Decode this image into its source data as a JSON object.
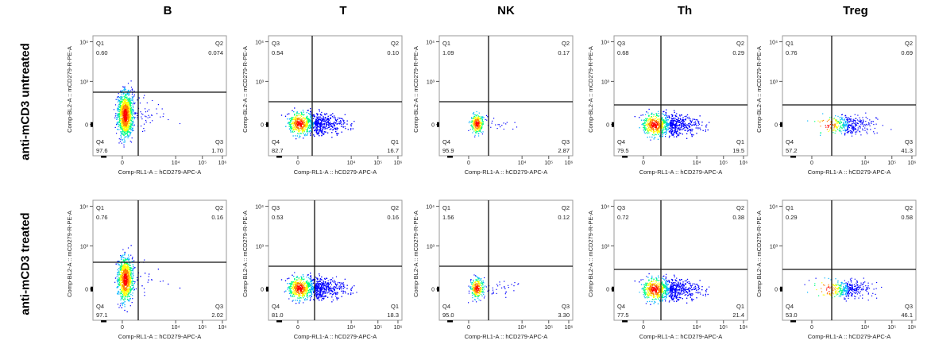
{
  "columns": [
    "B",
    "T",
    "NK",
    "Th",
    "Treg"
  ],
  "rows": [
    "anti-mCD3 untreated",
    "anti-mCD3 treated"
  ],
  "chart_data": {
    "type": "scatter",
    "subtype": "flow-cytometry-density-dot-plot",
    "xlabel": "Comp-RL1-A :: hCD279-APC-A",
    "ylabel": "Comp-BL2-A :: mCD279-R-PE-A",
    "x_ticks": [
      "0",
      "10⁴",
      "10⁵",
      "10⁶"
    ],
    "y_ticks": [
      "0",
      "10³",
      "10⁴"
    ],
    "density_colors": [
      "#0000ff",
      "#00b4ff",
      "#00ff80",
      "#ffff00",
      "#ff8000",
      "#ff0000"
    ],
    "panels": [
      {
        "row": "anti-mCD3 untreated",
        "column": "B",
        "quadrants": [
          {
            "label": "Q1",
            "value": "0.60"
          },
          {
            "label": "Q2",
            "value": "0.074"
          },
          {
            "label": "Q3",
            "value": "1.70"
          },
          {
            "label": "Q4",
            "value": "97.6"
          }
        ]
      },
      {
        "row": "anti-mCD3 untreated",
        "column": "T",
        "quadrants": [
          {
            "label": "Q3",
            "value": "0.54"
          },
          {
            "label": "Q2",
            "value": "0.10"
          },
          {
            "label": "Q1",
            "value": "16.7"
          },
          {
            "label": "Q4",
            "value": "82.7"
          }
        ]
      },
      {
        "row": "anti-mCD3 untreated",
        "column": "NK",
        "quadrants": [
          {
            "label": "Q1",
            "value": "1.09"
          },
          {
            "label": "Q2",
            "value": "0.17"
          },
          {
            "label": "Q3",
            "value": "2.87"
          },
          {
            "label": "Q4",
            "value": "95.9"
          }
        ]
      },
      {
        "row": "anti-mCD3 untreated",
        "column": "Th",
        "quadrants": [
          {
            "label": "Q3",
            "value": "0.68"
          },
          {
            "label": "Q2",
            "value": "0.29"
          },
          {
            "label": "Q1",
            "value": "19.5"
          },
          {
            "label": "Q4",
            "value": "79.5"
          }
        ]
      },
      {
        "row": "anti-mCD3 untreated",
        "column": "Treg",
        "quadrants": [
          {
            "label": "Q1",
            "value": "0.76"
          },
          {
            "label": "Q2",
            "value": "0.69"
          },
          {
            "label": "Q3",
            "value": "41.3"
          },
          {
            "label": "Q4",
            "value": "57.2"
          }
        ]
      },
      {
        "row": "anti-mCD3 treated",
        "column": "B",
        "quadrants": [
          {
            "label": "Q1",
            "value": "0.76"
          },
          {
            "label": "Q2",
            "value": "0.16"
          },
          {
            "label": "Q3",
            "value": "2.02"
          },
          {
            "label": "Q4",
            "value": "97.1"
          }
        ]
      },
      {
        "row": "anti-mCD3 treated",
        "column": "T",
        "quadrants": [
          {
            "label": "Q3",
            "value": "0.53"
          },
          {
            "label": "Q2",
            "value": "0.16"
          },
          {
            "label": "Q1",
            "value": "18.3"
          },
          {
            "label": "Q4",
            "value": "81.0"
          }
        ]
      },
      {
        "row": "anti-mCD3 treated",
        "column": "NK",
        "quadrants": [
          {
            "label": "Q1",
            "value": "1.56"
          },
          {
            "label": "Q2",
            "value": "0.12"
          },
          {
            "label": "Q3",
            "value": "3.30"
          },
          {
            "label": "Q4",
            "value": "95.0"
          }
        ]
      },
      {
        "row": "anti-mCD3 treated",
        "column": "Th",
        "quadrants": [
          {
            "label": "Q3",
            "value": "0.72"
          },
          {
            "label": "Q2",
            "value": "0.38"
          },
          {
            "label": "Q1",
            "value": "21.4"
          },
          {
            "label": "Q4",
            "value": "77.5"
          }
        ]
      },
      {
        "row": "anti-mCD3 treated",
        "column": "Treg",
        "quadrants": [
          {
            "label": "Q1",
            "value": "0.29"
          },
          {
            "label": "Q2",
            "value": "0.58"
          },
          {
            "label": "Q3",
            "value": "46.1"
          },
          {
            "label": "Q4",
            "value": "53.0"
          }
        ]
      }
    ]
  }
}
